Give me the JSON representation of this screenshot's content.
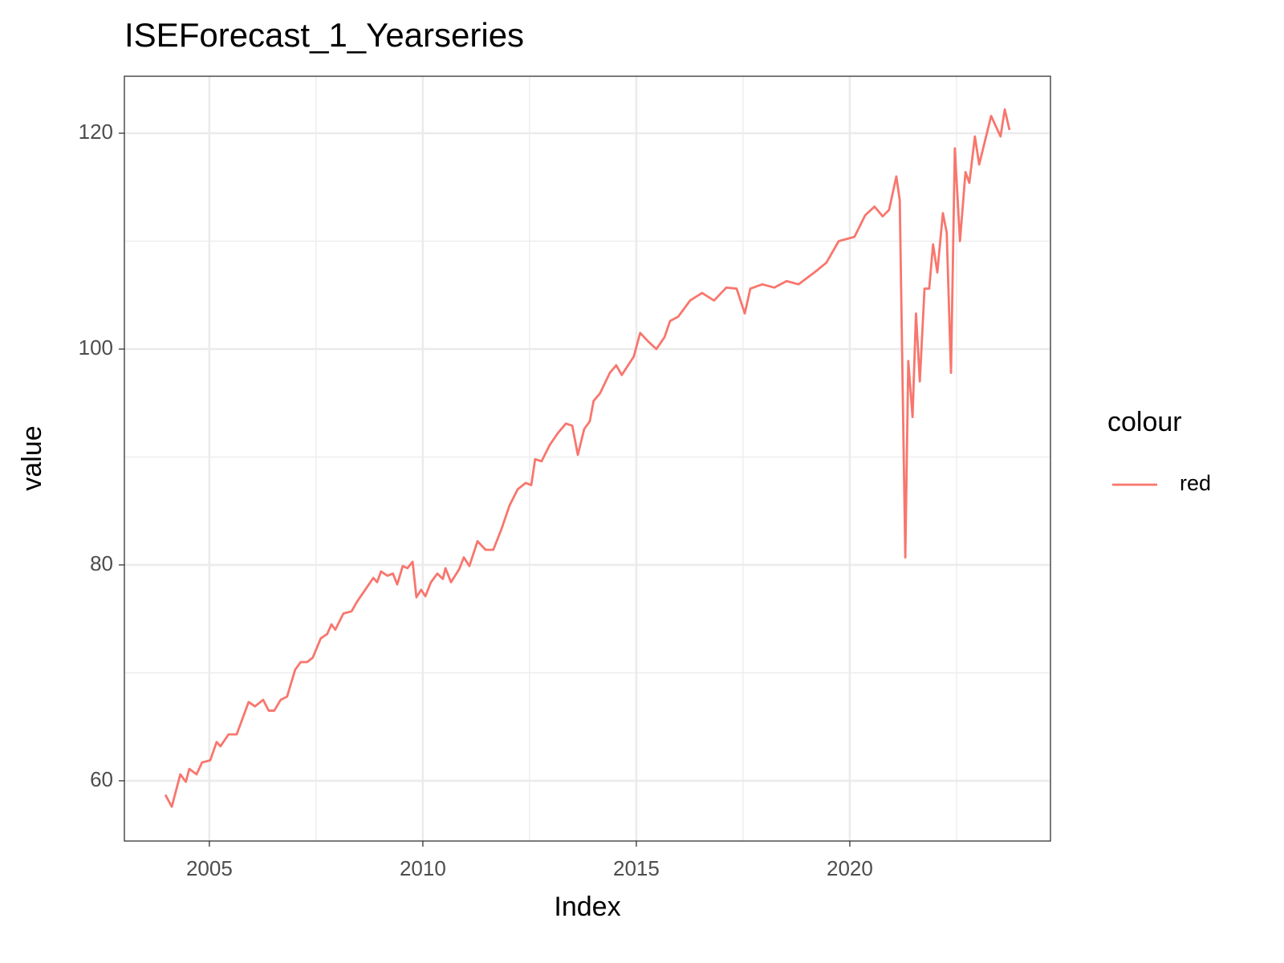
{
  "chart_data": {
    "type": "line",
    "title": "ISEForecast_1_Yearseries",
    "x_label": "Index",
    "y_label": "value",
    "legend_title": "colour",
    "legend": "right",
    "xlim": [
      2003.01,
      2024.7
    ],
    "ylim": [
      54.42,
      125.28
    ],
    "xticks": [
      2005,
      2010,
      2015,
      2020
    ],
    "yticks": [
      60,
      80,
      100,
      120
    ],
    "x_minor_grid": [
      2007.5,
      2012.5,
      2017.5,
      2022.5
    ],
    "y_minor_grid": [
      70,
      90,
      110
    ],
    "grid": true,
    "x": [
      2003.97,
      2004.12,
      2004.32,
      2004.45,
      2004.53,
      2004.7,
      2004.83,
      2005.02,
      2005.17,
      2005.26,
      2005.45,
      2005.64,
      2005.92,
      2006.07,
      2006.26,
      2006.39,
      2006.52,
      2006.67,
      2006.82,
      2007.01,
      2007.14,
      2007.29,
      2007.42,
      2007.61,
      2007.76,
      2007.86,
      2007.95,
      2008.14,
      2008.33,
      2008.46,
      2008.65,
      2008.84,
      2008.93,
      2009.02,
      2009.17,
      2009.3,
      2009.4,
      2009.53,
      2009.64,
      2009.76,
      2009.85,
      2009.96,
      2010.06,
      2010.19,
      2010.34,
      2010.47,
      2010.53,
      2010.66,
      2010.85,
      2010.96,
      2011.09,
      2011.28,
      2011.47,
      2011.65,
      2011.84,
      2012.03,
      2012.22,
      2012.41,
      2012.54,
      2012.63,
      2012.78,
      2012.97,
      2013.16,
      2013.35,
      2013.5,
      2013.63,
      2013.78,
      2013.91,
      2014.0,
      2014.15,
      2014.38,
      2014.53,
      2014.66,
      2014.94,
      2015.09,
      2015.28,
      2015.47,
      2015.66,
      2015.79,
      2015.98,
      2016.26,
      2016.54,
      2016.82,
      2017.11,
      2017.35,
      2017.54,
      2017.67,
      2017.95,
      2018.23,
      2018.52,
      2018.8,
      2019.17,
      2019.45,
      2019.74,
      2020.11,
      2020.36,
      2020.58,
      2020.77,
      2020.92,
      2021.09,
      2021.17,
      2021.3,
      2021.37,
      2021.47,
      2021.55,
      2021.64,
      2021.75,
      2021.86,
      2021.95,
      2022.05,
      2022.18,
      2022.27,
      2022.37,
      2022.46,
      2022.58,
      2022.71,
      2022.8,
      2022.93,
      2023.03,
      2023.31,
      2023.53,
      2023.63,
      2023.74
    ],
    "series": [
      {
        "name": "red",
        "color": "#F8766D",
        "values": [
          58.7,
          57.6,
          60.6,
          59.9,
          61.1,
          60.6,
          61.7,
          61.9,
          63.6,
          63.2,
          64.3,
          64.3,
          67.3,
          66.9,
          67.5,
          66.5,
          66.5,
          67.5,
          67.8,
          70.3,
          71.0,
          71.0,
          71.4,
          73.2,
          73.6,
          74.5,
          74.0,
          75.5,
          75.7,
          76.6,
          77.7,
          78.8,
          78.4,
          79.4,
          79.0,
          79.2,
          78.2,
          79.9,
          79.7,
          80.3,
          77.0,
          77.7,
          77.1,
          78.4,
          79.2,
          78.7,
          79.7,
          78.4,
          79.6,
          80.7,
          79.9,
          82.2,
          81.4,
          81.4,
          83.3,
          85.5,
          87.0,
          87.6,
          87.4,
          89.8,
          89.6,
          91.1,
          92.2,
          93.1,
          92.9,
          90.2,
          92.6,
          93.3,
          95.2,
          95.9,
          97.8,
          98.5,
          97.6,
          99.3,
          101.5,
          100.7,
          100.0,
          101.1,
          102.6,
          103.0,
          104.5,
          105.2,
          104.5,
          105.7,
          105.6,
          103.3,
          105.6,
          106.0,
          105.7,
          106.3,
          106.0,
          107.1,
          108.0,
          110.0,
          110.4,
          112.4,
          113.2,
          112.3,
          112.9,
          116.0,
          113.8,
          80.7,
          98.9,
          93.7,
          103.3,
          97.0,
          105.6,
          105.6,
          109.7,
          107.1,
          112.6,
          110.8,
          97.8,
          118.6,
          110.0,
          116.4,
          115.4,
          119.7,
          117.1,
          121.6,
          119.7,
          122.2,
          120.3
        ]
      }
    ]
  }
}
